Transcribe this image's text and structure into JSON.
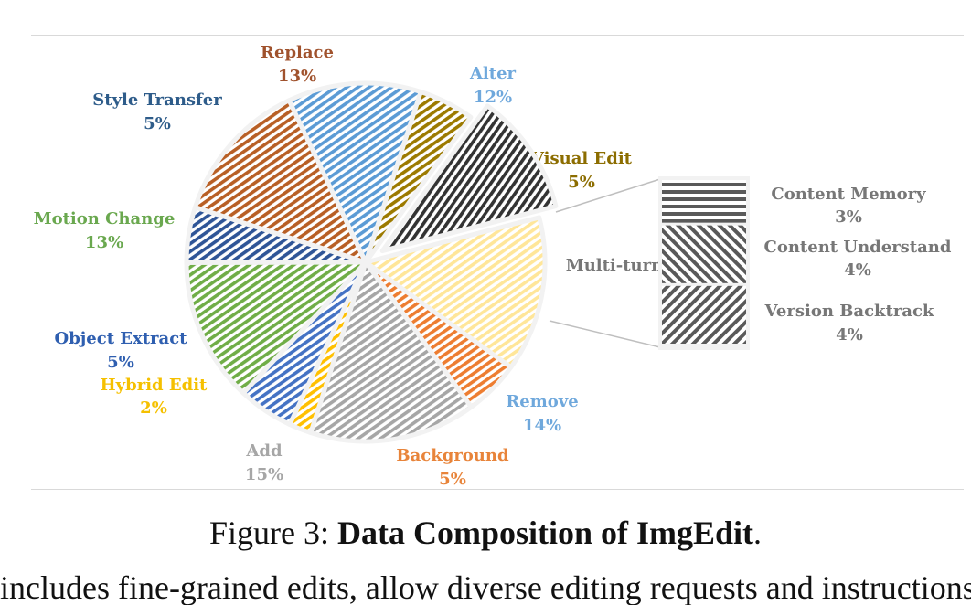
{
  "chart_data": {
    "type": "pie",
    "slices": [
      {
        "name": "Remove",
        "value": 14,
        "label": "14%",
        "color": "#6fa8dc",
        "fill": "#ffe699"
      },
      {
        "name": "Background",
        "value": 5,
        "label": "5%",
        "color": "#e8843a",
        "fill": "#ed7d31"
      },
      {
        "name": "Add",
        "value": 15,
        "label": "15%",
        "color": "#a6a6a6",
        "fill": "#a6a6a6"
      },
      {
        "name": "Hybrid Edit",
        "value": 2,
        "label": "2%",
        "color": "#f5c000",
        "fill": "#ffc000"
      },
      {
        "name": "Object Extract",
        "value": 5,
        "label": "5%",
        "color": "#2f5fb0",
        "fill": "#4472c4"
      },
      {
        "name": "Motion Change",
        "value": 13,
        "label": "13%",
        "color": "#6aa84f",
        "fill": "#70ad47"
      },
      {
        "name": "Style Transfer",
        "value": 5,
        "label": "5%",
        "color": "#2e5c8a",
        "fill": "#2f5597"
      },
      {
        "name": "Replace",
        "value": 13,
        "label": "13%",
        "color": "#a0522d",
        "fill": "#b85f25"
      },
      {
        "name": "Alter",
        "value": 12,
        "label": "12%",
        "color": "#6fa8dc",
        "fill": "#5b9bd5"
      },
      {
        "name": "Visual Edit",
        "value": 5,
        "label": "5%",
        "color": "#8c6d00",
        "fill": "#9c7a00"
      },
      {
        "name": "Multi-turn",
        "value": 11,
        "label": "",
        "color": "#777777",
        "fill": "#333333"
      }
    ],
    "breakdown": {
      "parent": "Multi-turn",
      "items": [
        {
          "name": "Content Memory",
          "value": 3,
          "label": "3%"
        },
        {
          "name": "Content Understand",
          "value": 4,
          "label": "4%"
        },
        {
          "name": "Version Backtrack",
          "value": 4,
          "label": "4%"
        }
      ],
      "color": "#777777"
    }
  },
  "caption": {
    "prefix": "Figure 3: ",
    "bold": "Data Composition of ImgEdit",
    "suffix": "."
  },
  "cutoff_text": "includes fine-grained edits, allow diverse editing requests and instructions."
}
